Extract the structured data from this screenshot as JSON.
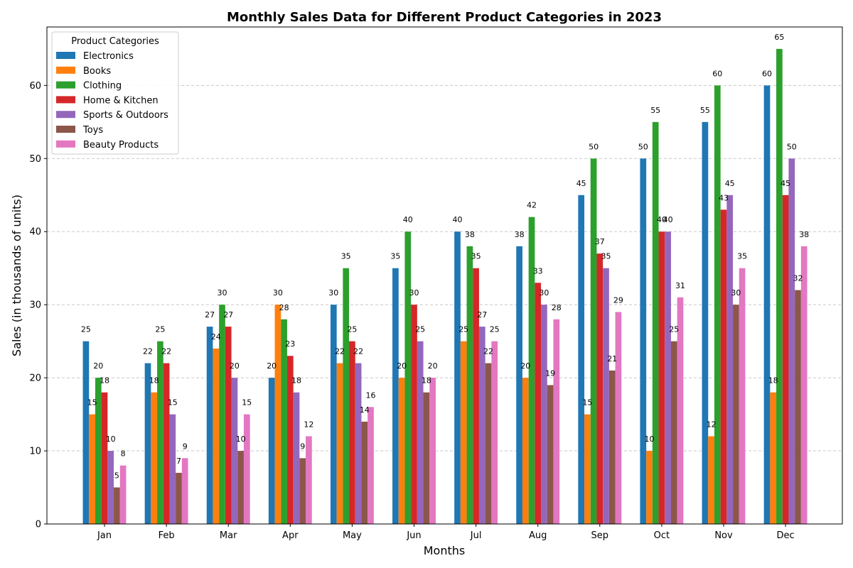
{
  "chart_data": {
    "type": "bar",
    "title": "Monthly Sales Data for Different Product Categories in 2023",
    "xlabel": "Months",
    "ylabel": "Sales (in thousands of units)",
    "ylim": [
      0,
      68
    ],
    "yticks": [
      0,
      10,
      20,
      30,
      40,
      50,
      60
    ],
    "grid": "y-dashed",
    "legend": {
      "title": "Product Categories",
      "position": "top-left"
    },
    "categories": [
      "Jan",
      "Feb",
      "Mar",
      "Apr",
      "May",
      "Jun",
      "Jul",
      "Aug",
      "Sep",
      "Oct",
      "Nov",
      "Dec"
    ],
    "series": [
      {
        "name": "Electronics",
        "color": "#1f77b4",
        "values": [
          25,
          22,
          27,
          20,
          30,
          35,
          40,
          38,
          45,
          50,
          55,
          60
        ]
      },
      {
        "name": "Books",
        "color": "#ff7f0e",
        "values": [
          15,
          18,
          24,
          30,
          22,
          20,
          25,
          20,
          15,
          10,
          12,
          18
        ]
      },
      {
        "name": "Clothing",
        "color": "#2ca02c",
        "values": [
          20,
          25,
          30,
          28,
          35,
          40,
          38,
          42,
          50,
          55,
          60,
          65
        ]
      },
      {
        "name": "Home & Kitchen",
        "color": "#d62728",
        "values": [
          18,
          22,
          27,
          23,
          25,
          30,
          35,
          33,
          37,
          40,
          43,
          45
        ]
      },
      {
        "name": "Sports & Outdoors",
        "color": "#9467bd",
        "values": [
          10,
          15,
          20,
          18,
          22,
          25,
          27,
          30,
          35,
          40,
          45,
          50
        ]
      },
      {
        "name": "Toys",
        "color": "#8c564b",
        "values": [
          5,
          7,
          10,
          9,
          14,
          18,
          22,
          19,
          21,
          25,
          30,
          32
        ]
      },
      {
        "name": "Beauty Products",
        "color": "#e377c2",
        "values": [
          8,
          9,
          15,
          12,
          16,
          20,
          25,
          28,
          29,
          31,
          35,
          38
        ]
      }
    ]
  }
}
